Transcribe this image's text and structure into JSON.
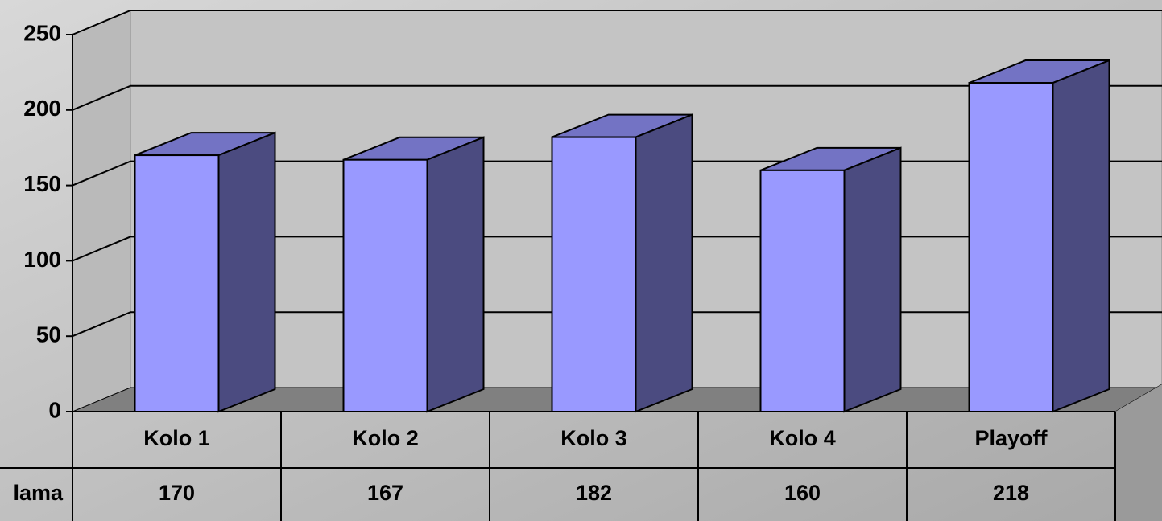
{
  "chart_data": {
    "type": "bar3d",
    "categories": [
      "Kolo 1",
      "Kolo 2",
      "Kolo 3",
      "Kolo 4",
      "Playoff"
    ],
    "series": [
      {
        "name": "lama",
        "color": "#9999ff",
        "values": [
          170,
          167,
          182,
          160,
          218
        ]
      }
    ],
    "ylim": [
      0,
      250
    ],
    "yticks": [
      0,
      50,
      100,
      150,
      200,
      250
    ],
    "grid": true
  }
}
